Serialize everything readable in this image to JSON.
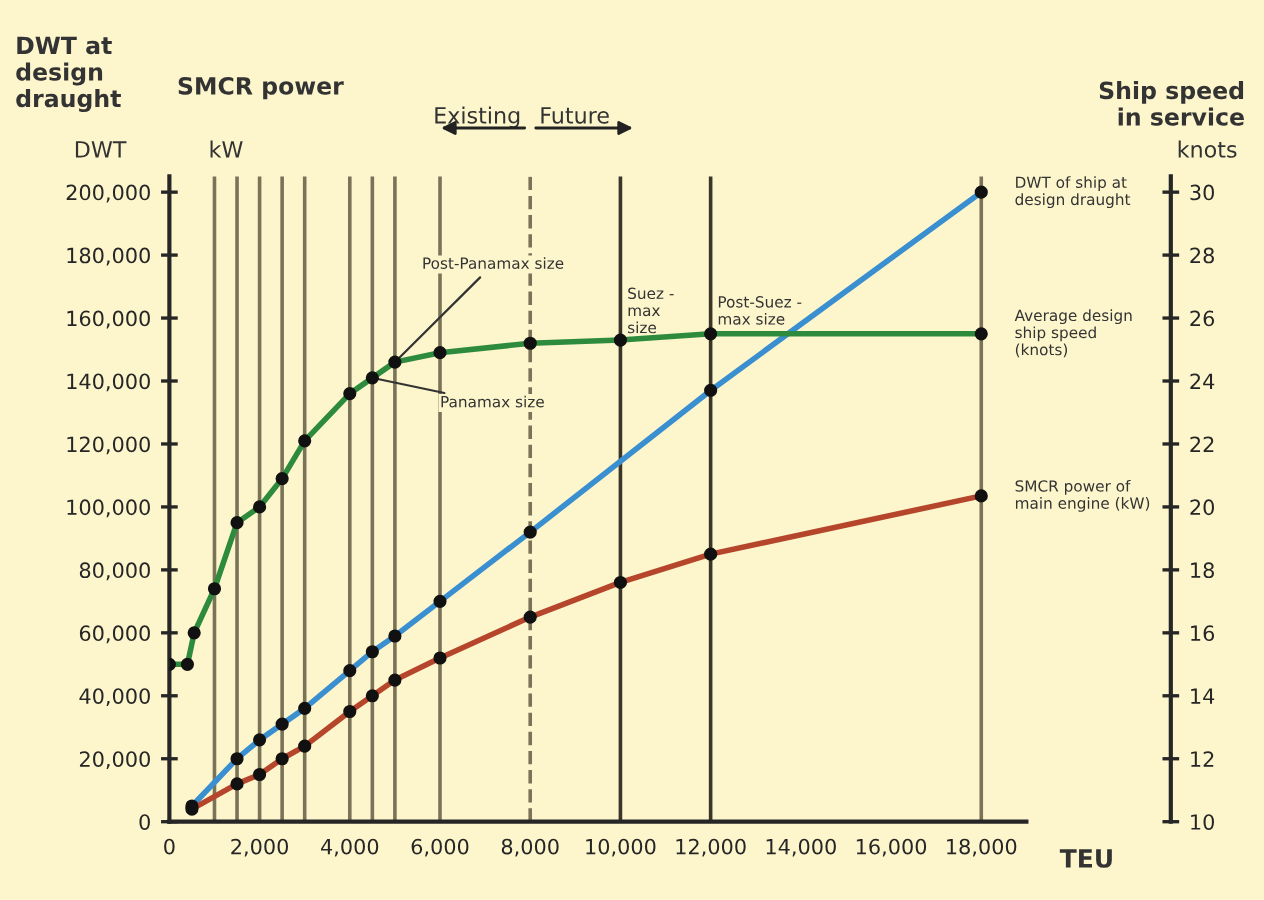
{
  "chart_data": {
    "type": "line",
    "xlabel": "TEU",
    "ylabel": "DWT at design draught",
    "y2label": "Ship speed in service",
    "annotations": [
      "DWT",
      "SMCR power",
      "kW",
      "knots",
      "Existing",
      "Future",
      {
        "text": "Post-Panamax size",
        "x": 5000,
        "y": 146000
      },
      {
        "text": "Panamax size",
        "x": 4500,
        "y": 141000
      },
      "Suez - max size",
      "Post-Suez - max size"
    ],
    "series": [
      {
        "name": "DWT of ship at design draught",
        "color": "#3a8fd0",
        "x": [
          500,
          1500,
          2000,
          2500,
          3000,
          4000,
          4500,
          5000,
          6000,
          8000,
          12000,
          18000
        ],
        "values": [
          5000,
          20000,
          26000,
          31000,
          36000,
          48000,
          54000,
          59000,
          70000,
          92000,
          137000,
          200000
        ]
      },
      {
        "name": "Average design ship speed (knots)",
        "color": "#2e8b3e",
        "axis": "y2",
        "x": [
          0,
          400,
          550,
          1000,
          1500,
          2000,
          2500,
          3000,
          4000,
          4500,
          5000,
          6000,
          8000,
          10000,
          12000,
          18000
        ],
        "values": [
          15,
          15,
          16.0,
          17.4,
          19.5,
          20.0,
          20.9,
          22.1,
          23.6,
          24.1,
          24.6,
          24.9,
          25.2,
          25.3,
          25.5,
          25.5
        ]
      },
      {
        "name": "SMCR power of main engine (kW)",
        "color": "#b5452b",
        "x": [
          500,
          1500,
          2000,
          2500,
          3000,
          4000,
          4500,
          5000,
          6000,
          8000,
          10000,
          12000,
          18000
        ],
        "values": [
          4000,
          12000,
          15000,
          20000,
          24000,
          35000,
          40000,
          45000,
          52000,
          65000,
          76000,
          85000,
          103500
        ]
      }
    ],
    "xlim": [
      0,
      19000
    ],
    "xticks": [
      0,
      {
        "value": 2000,
        "label": "2,000"
      },
      {
        "value": 4000,
        "label": "4,000"
      },
      {
        "value": 6000,
        "label": "6,000"
      },
      {
        "value": 8000,
        "label": "8,000"
      },
      {
        "value": 10000,
        "label": "10,000"
      },
      {
        "value": 12000,
        "label": "12,000"
      },
      {
        "value": 14000,
        "label": "14,000"
      },
      {
        "value": 16000,
        "label": "16,000"
      },
      {
        "value": 18000,
        "label": "18,000"
      }
    ],
    "ylim": [
      0,
      205000
    ],
    "yticks": [
      0,
      {
        "value": 20000,
        "label": "20,000"
      },
      {
        "value": 40000,
        "label": "40,000"
      },
      {
        "value": 60000,
        "label": "60,000"
      },
      {
        "value": 80000,
        "label": "80,000"
      },
      {
        "value": 100000,
        "label": "100,000"
      },
      {
        "value": 120000,
        "label": "120,000"
      },
      {
        "value": 140000,
        "label": "140,000"
      },
      {
        "value": 160000,
        "label": "160,000"
      },
      {
        "value": 180000,
        "label": "180,000"
      },
      {
        "value": 200000,
        "label": "200,000"
      }
    ],
    "y2lim": [
      10,
      30.5
    ],
    "y2ticks": [
      10,
      12,
      14,
      16,
      18,
      20,
      22,
      24,
      26,
      28,
      30
    ],
    "ref_lines": [
      {
        "axis": "x",
        "value": 1000,
        "color": "#7a7358"
      },
      {
        "axis": "x",
        "value": 1500,
        "color": "#7a7358"
      },
      {
        "axis": "x",
        "value": 2000,
        "color": "#7a7358"
      },
      {
        "axis": "x",
        "value": 2500,
        "color": "#7a7358"
      },
      {
        "axis": "x",
        "value": 3000,
        "color": "#7a7358"
      },
      {
        "axis": "x",
        "value": 4000,
        "color": "#7a7358"
      },
      {
        "axis": "x",
        "value": 4500,
        "color": "#7a7358"
      },
      {
        "axis": "x",
        "value": 5000,
        "color": "#7a7358"
      },
      {
        "axis": "x",
        "value": 6000,
        "color": "#7a7358"
      },
      {
        "axis": "x",
        "value": 8000,
        "color": "#7a7358",
        "line_style": "dashed"
      },
      {
        "axis": "x",
        "value": 10000,
        "color": "#3a3528"
      },
      {
        "axis": "x",
        "value": 12000,
        "color": "#3a3528"
      },
      {
        "axis": "x",
        "value": 18000,
        "color": "#7a7358"
      }
    ],
    "marker": "circle",
    "line_style": "solid",
    "grid": false,
    "legend": false
  }
}
